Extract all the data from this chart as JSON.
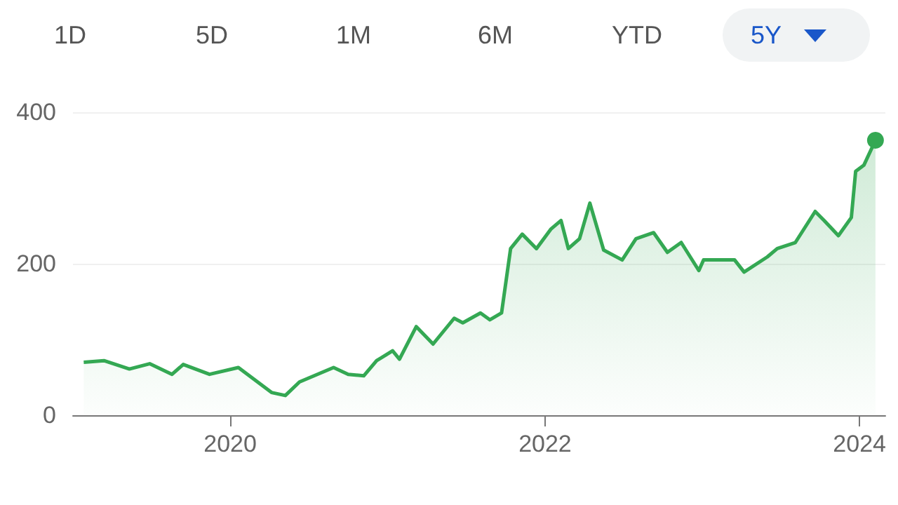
{
  "chart_data": {
    "type": "area",
    "x": [
      "2019-01-26",
      "2019-03-14",
      "2019-05-12",
      "2019-06-28",
      "2019-08-19",
      "2019-09-14",
      "2019-11-14",
      "2020-01-20",
      "2020-04-06",
      "2020-05-08",
      "2020-06-10",
      "2020-08-28",
      "2020-10-01",
      "2020-11-06",
      "2020-12-06",
      "2021-01-12",
      "2021-01-28",
      "2021-03-08",
      "2021-04-16",
      "2021-06-04",
      "2021-06-24",
      "2021-08-04",
      "2021-08-26",
      "2021-09-22",
      "2021-10-13",
      "2021-11-09",
      "2021-12-12",
      "2022-01-15",
      "2022-02-07",
      "2022-02-24",
      "2022-03-22",
      "2022-04-15",
      "2022-05-17",
      "2022-06-29",
      "2022-07-31",
      "2022-09-10",
      "2022-10-12",
      "2022-11-13",
      "2022-12-24",
      "2023-01-04",
      "2023-03-17",
      "2023-04-08",
      "2023-06-01",
      "2023-06-24",
      "2023-08-05",
      "2023-09-20",
      "2023-10-11",
      "2023-11-13",
      "2023-12-13",
      "2023-12-23",
      "2024-01-11",
      "2024-02-07"
    ],
    "series": [
      {
        "color": "#34a853",
        "values": [
          70,
          72,
          61,
          68,
          54,
          67,
          54,
          63,
          30,
          26,
          44,
          63,
          54,
          52,
          72,
          85,
          74,
          117,
          94,
          128,
          122,
          135,
          126,
          135,
          220,
          239,
          220,
          246,
          257,
          220,
          233,
          280,
          218,
          205,
          233,
          241,
          215,
          228,
          191,
          205,
          205,
          189,
          209,
          220,
          228,
          269,
          257,
          237,
          261,
          322,
          330,
          363
        ]
      }
    ],
    "xlim": [
      "2019-01-01",
      "2024-03-01"
    ],
    "xticks": [
      "2020",
      "2022",
      "2024"
    ],
    "ylim": [
      0,
      400
    ],
    "yticks": [
      0,
      200,
      400
    ],
    "grid": "y",
    "marker": "none",
    "line_style": "solid",
    "annotations": [
      "1D",
      "5D",
      "1M",
      "6M",
      "YTD",
      "5Y"
    ]
  }
}
